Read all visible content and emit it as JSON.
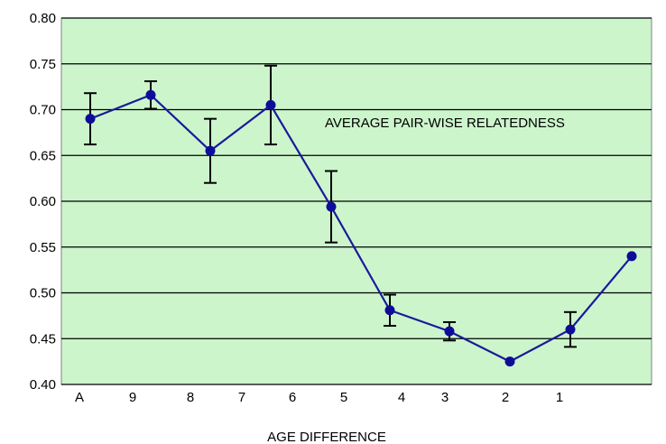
{
  "chart_data": {
    "type": "line",
    "title": "",
    "annotation": "AVERAGE PAIR-WISE RELATEDNESS",
    "xlabel": "AGE DIFFERENCE",
    "ylabel": "",
    "ylim": [
      0.4,
      0.8
    ],
    "yticks": [
      "0.40",
      "0.45",
      "0.50",
      "0.55",
      "0.60",
      "0.65",
      "0.70",
      "0.75",
      "0.80"
    ],
    "xtick_labels": [
      "A",
      "9",
      "8",
      "7",
      "6",
      "5",
      "4",
      "3",
      "2",
      "1"
    ],
    "grid": "horizontal",
    "background_color": "#ccf5cc",
    "line_color": "#1a1a99",
    "marker_color": "#0d0d99",
    "errorbar_color": "#000000",
    "series": [
      {
        "points": [
          {
            "y": 0.69,
            "err": 0.028
          },
          {
            "y": 0.716,
            "err": 0.015
          },
          {
            "y": 0.655,
            "err": 0.035
          },
          {
            "y": 0.705,
            "err": 0.043
          },
          {
            "y": 0.594,
            "err": 0.039
          },
          {
            "y": 0.481,
            "err": 0.017
          },
          {
            "y": 0.458,
            "err": 0.01
          },
          {
            "y": 0.425,
            "err": 0.0
          },
          {
            "y": 0.46,
            "err": 0.019
          },
          {
            "y": 0.54,
            "err": 0.0
          }
        ]
      }
    ]
  }
}
